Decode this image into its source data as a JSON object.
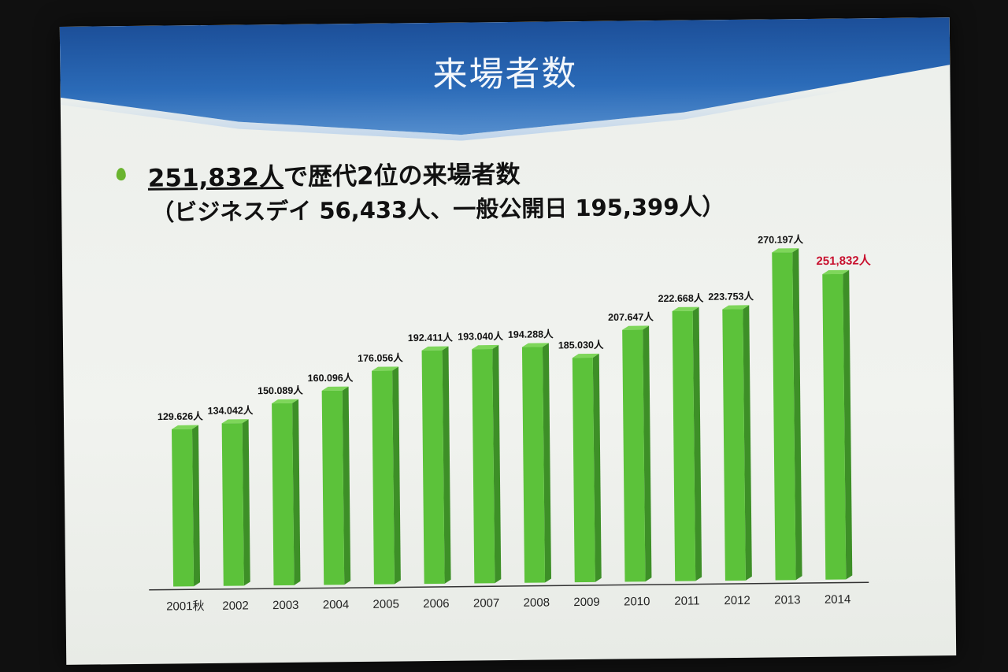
{
  "slide": {
    "title": "来場者数",
    "headline_figure": "251,832人",
    "headline_rest": "で歴代2位の来場者数",
    "subline": "（ビジネスデイ 56,433人、一般公開日 195,399人）"
  },
  "colors": {
    "bar": "#5cc23a",
    "bar_side": "#3d8f27",
    "bar_top": "#7ed65a",
    "highlight_label": "#c8102e",
    "header": "#1c4f99"
  },
  "chart_data": {
    "type": "bar",
    "title": "",
    "xlabel": "",
    "ylabel": "",
    "categories": [
      "2001秋",
      "2002",
      "2003",
      "2004",
      "2005",
      "2006",
      "2007",
      "2008",
      "2009",
      "2010",
      "2011",
      "2012",
      "2013",
      "2014"
    ],
    "values": [
      129626,
      134042,
      150089,
      160096,
      176056,
      192411,
      193040,
      194288,
      185030,
      207647,
      222668,
      223753,
      270197,
      251832
    ],
    "data_labels": [
      "129.626人",
      "134.042人",
      "150.089人",
      "160.096人",
      "176.056人",
      "192.411人",
      "193.040人",
      "194.288人",
      "185.030人",
      "207.647人",
      "222.668人",
      "223.753人",
      "270.197人",
      "251,832人"
    ],
    "highlight_index": 13,
    "ylim": [
      0,
      270197
    ],
    "grid": false,
    "legend": "none"
  }
}
